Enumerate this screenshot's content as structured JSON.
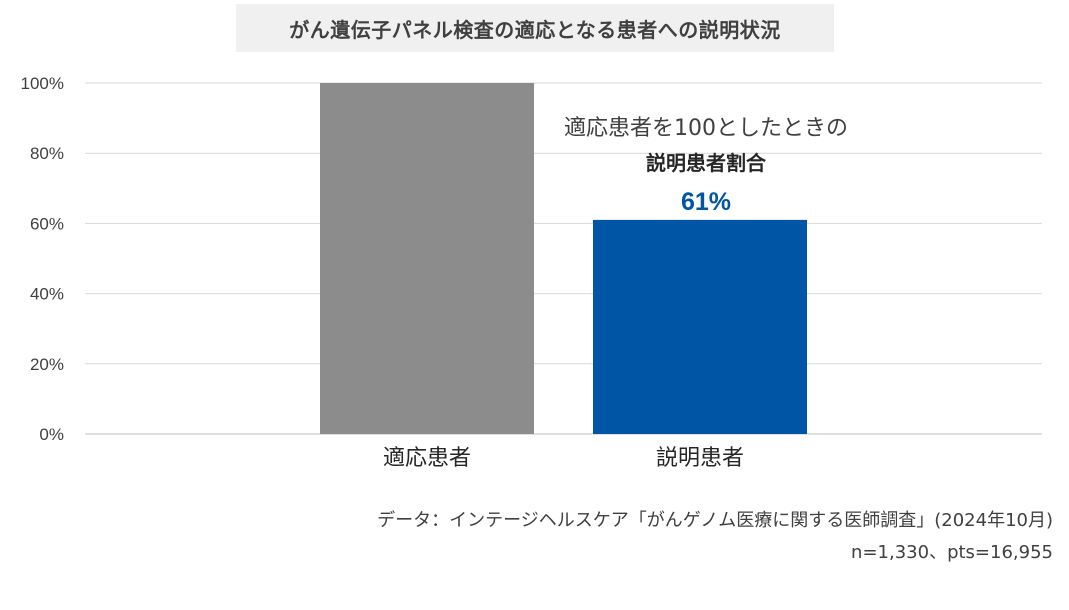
{
  "title": "がん遺伝子パネル検査の適応となる患者への説明状況",
  "chart_data": {
    "type": "bar",
    "categories": [
      "適応患者",
      "説明患者"
    ],
    "values": [
      100,
      61
    ],
    "ylim": [
      0,
      100
    ],
    "yticks": [
      0,
      20,
      40,
      60,
      80,
      100
    ],
    "ytick_labels": [
      "0%",
      "20%",
      "40%",
      "60%",
      "80%",
      "100%"
    ],
    "grid": true,
    "bar_colors": [
      "#8c8c8c",
      "#0055a4"
    ],
    "annotation": {
      "line1": "適応患者を100としたときの",
      "line2": "説明患者割合",
      "value_label": "61%",
      "value_color": "#0055a4"
    }
  },
  "source": "データ：インテージヘルスケア「がんゲノム医療に関する医師調査」(2024年10月)",
  "sample": "n=1,330、pts=16,955"
}
